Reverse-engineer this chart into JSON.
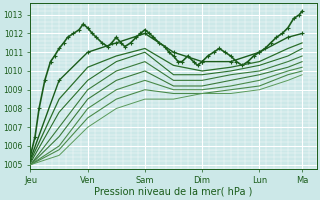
{
  "xlabel": "Pression niveau de la mer( hPa )",
  "bg_color": "#cce8e8",
  "grid_color": "#ffffff",
  "line_color_dark": "#1a5c1a",
  "line_color_light": "#3a8a3a",
  "ylim": [
    1004.8,
    1013.6
  ],
  "yticks": [
    1005,
    1006,
    1007,
    1008,
    1009,
    1010,
    1011,
    1012,
    1013
  ],
  "day_labels": [
    "Jeu",
    "Ven",
    "Sam",
    "Dim",
    "Lun",
    "Ma"
  ],
  "day_positions": [
    0,
    1,
    2,
    3,
    4,
    4.75
  ],
  "xlim": [
    0,
    5.0
  ],
  "series": [
    {
      "x": [
        0.0,
        0.08,
        0.15,
        0.25,
        0.35,
        0.42,
        0.5,
        0.58,
        0.65,
        0.75,
        0.85,
        0.92,
        1.0,
        1.08,
        1.15,
        1.25,
        1.35,
        1.42,
        1.5,
        1.58,
        1.65,
        1.75,
        1.85,
        1.92,
        2.0,
        2.08,
        2.15,
        2.25,
        2.35,
        2.42,
        2.5,
        2.58,
        2.65,
        2.75,
        2.85,
        2.92,
        3.0,
        3.1,
        3.2,
        3.3,
        3.4,
        3.5,
        3.6,
        3.7,
        3.8,
        3.9,
        4.0,
        4.1,
        4.2,
        4.3,
        4.4,
        4.5,
        4.6,
        4.7,
        4.75
      ],
      "y": [
        1005.5,
        1006.5,
        1008.0,
        1009.5,
        1010.5,
        1010.8,
        1011.2,
        1011.5,
        1011.8,
        1012.0,
        1012.2,
        1012.5,
        1012.3,
        1012.0,
        1011.8,
        1011.5,
        1011.3,
        1011.5,
        1011.8,
        1011.5,
        1011.3,
        1011.5,
        1011.8,
        1012.0,
        1012.2,
        1012.0,
        1011.8,
        1011.5,
        1011.3,
        1011.0,
        1010.8,
        1010.5,
        1010.5,
        1010.8,
        1010.5,
        1010.3,
        1010.5,
        1010.8,
        1011.0,
        1011.2,
        1011.0,
        1010.8,
        1010.5,
        1010.3,
        1010.5,
        1010.8,
        1011.0,
        1011.2,
        1011.5,
        1011.8,
        1012.0,
        1012.3,
        1012.8,
        1013.0,
        1013.2
      ],
      "marker": true,
      "lw": 1.2,
      "color": "#1a5c1a"
    },
    {
      "x": [
        0.0,
        0.5,
        1.0,
        1.5,
        2.0,
        2.5,
        3.0,
        3.5,
        4.0,
        4.5,
        4.75
      ],
      "y": [
        1005.3,
        1009.5,
        1011.0,
        1011.5,
        1012.0,
        1011.0,
        1010.5,
        1010.5,
        1011.0,
        1011.8,
        1012.0
      ],
      "marker": true,
      "lw": 1.0,
      "color": "#1a5c1a"
    },
    {
      "x": [
        0.0,
        0.5,
        1.0,
        1.5,
        2.0,
        2.5,
        3.0,
        3.5,
        4.0,
        4.5,
        4.75
      ],
      "y": [
        1005.2,
        1008.5,
        1010.2,
        1010.8,
        1011.2,
        1010.3,
        1010.0,
        1010.2,
        1010.5,
        1011.2,
        1011.5
      ],
      "marker": false,
      "lw": 0.9,
      "color": "#2a6e2a"
    },
    {
      "x": [
        0.0,
        0.5,
        1.0,
        1.5,
        2.0,
        2.5,
        3.0,
        3.5,
        4.0,
        4.5,
        4.75
      ],
      "y": [
        1005.1,
        1007.8,
        1009.5,
        1010.5,
        1011.0,
        1009.8,
        1009.8,
        1010.0,
        1010.3,
        1010.8,
        1011.2
      ],
      "marker": false,
      "lw": 0.8,
      "color": "#2a6e2a"
    },
    {
      "x": [
        0.0,
        0.5,
        1.0,
        1.5,
        2.0,
        2.5,
        3.0,
        3.5,
        4.0,
        4.5,
        4.75
      ],
      "y": [
        1005.0,
        1007.0,
        1009.0,
        1010.0,
        1010.5,
        1009.5,
        1009.5,
        1009.8,
        1010.0,
        1010.5,
        1010.8
      ],
      "marker": false,
      "lw": 0.8,
      "color": "#3a7a3a"
    },
    {
      "x": [
        0.0,
        0.5,
        1.0,
        1.5,
        2.0,
        2.5,
        3.0,
        3.5,
        4.0,
        4.5,
        4.75
      ],
      "y": [
        1005.0,
        1006.5,
        1008.5,
        1009.5,
        1010.0,
        1009.2,
        1009.2,
        1009.5,
        1009.8,
        1010.2,
        1010.5
      ],
      "marker": false,
      "lw": 0.8,
      "color": "#3a7a3a"
    },
    {
      "x": [
        0.0,
        0.5,
        1.0,
        1.5,
        2.0,
        2.5,
        3.0,
        3.5,
        4.0,
        4.5,
        4.75
      ],
      "y": [
        1005.0,
        1006.0,
        1008.0,
        1009.0,
        1009.5,
        1009.0,
        1009.0,
        1009.2,
        1009.5,
        1010.0,
        1010.2
      ],
      "marker": false,
      "lw": 0.8,
      "color": "#4a8a4a"
    },
    {
      "x": [
        0.0,
        0.5,
        1.0,
        1.5,
        2.0,
        2.5,
        3.0,
        3.5,
        4.0,
        4.5,
        4.75
      ],
      "y": [
        1005.0,
        1005.8,
        1007.5,
        1008.5,
        1009.0,
        1008.8,
        1008.8,
        1009.0,
        1009.2,
        1009.8,
        1010.0
      ],
      "marker": false,
      "lw": 0.8,
      "color": "#4a8a4a"
    },
    {
      "x": [
        0.0,
        0.5,
        1.0,
        1.5,
        2.0,
        2.5,
        3.0,
        3.5,
        4.0,
        4.5,
        4.75
      ],
      "y": [
        1005.0,
        1005.5,
        1007.0,
        1008.0,
        1008.5,
        1008.5,
        1008.8,
        1008.8,
        1009.0,
        1009.5,
        1009.8
      ],
      "marker": false,
      "lw": 0.7,
      "color": "#5a9a5a"
    }
  ]
}
